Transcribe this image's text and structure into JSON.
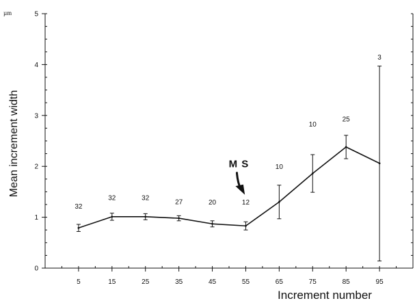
{
  "chart_data": {
    "type": "line",
    "xlabel": "Increment number",
    "ylabel": "Mean increment width",
    "y_unit": "µm",
    "ylim": [
      0,
      5
    ],
    "xlim": [
      -5,
      105
    ],
    "x_ticks": [
      5,
      15,
      25,
      35,
      45,
      55,
      65,
      75,
      85,
      95
    ],
    "x_tick_labels": [
      "5",
      "15",
      "25",
      "35",
      "45",
      "55",
      "65",
      "75",
      "85",
      "95"
    ],
    "y_ticks": [
      0,
      1,
      2,
      3,
      4,
      5
    ],
    "y_tick_labels": [
      "0",
      "1",
      "2",
      "3",
      "4",
      "5"
    ],
    "grid": false,
    "legend": "none",
    "series": [
      {
        "x": [
          5,
          15,
          25,
          35,
          45,
          55,
          65,
          75,
          85,
          95
        ],
        "y": [
          0.79,
          1.01,
          1.01,
          0.98,
          0.87,
          0.83,
          1.3,
          1.86,
          2.38,
          2.06
        ],
        "error_low": [
          0.72,
          0.94,
          0.95,
          0.93,
          0.81,
          0.75,
          0.97,
          1.49,
          2.15,
          0.14
        ],
        "error_high": [
          0.86,
          1.08,
          1.07,
          1.03,
          0.93,
          0.91,
          1.63,
          2.23,
          2.61,
          3.97
        ],
        "n_labels": [
          "32",
          "32",
          "32",
          "27",
          "20",
          "12",
          "10",
          "10",
          "25",
          "3"
        ],
        "n_label_y": [
          1.17,
          1.34,
          1.34,
          1.26,
          1.25,
          1.25,
          1.95,
          2.78,
          2.88,
          4.1
        ]
      }
    ],
    "annotations": [
      {
        "text": "M S",
        "x": 55,
        "y": 1.98,
        "arrow_to_y": 1.5
      }
    ]
  }
}
